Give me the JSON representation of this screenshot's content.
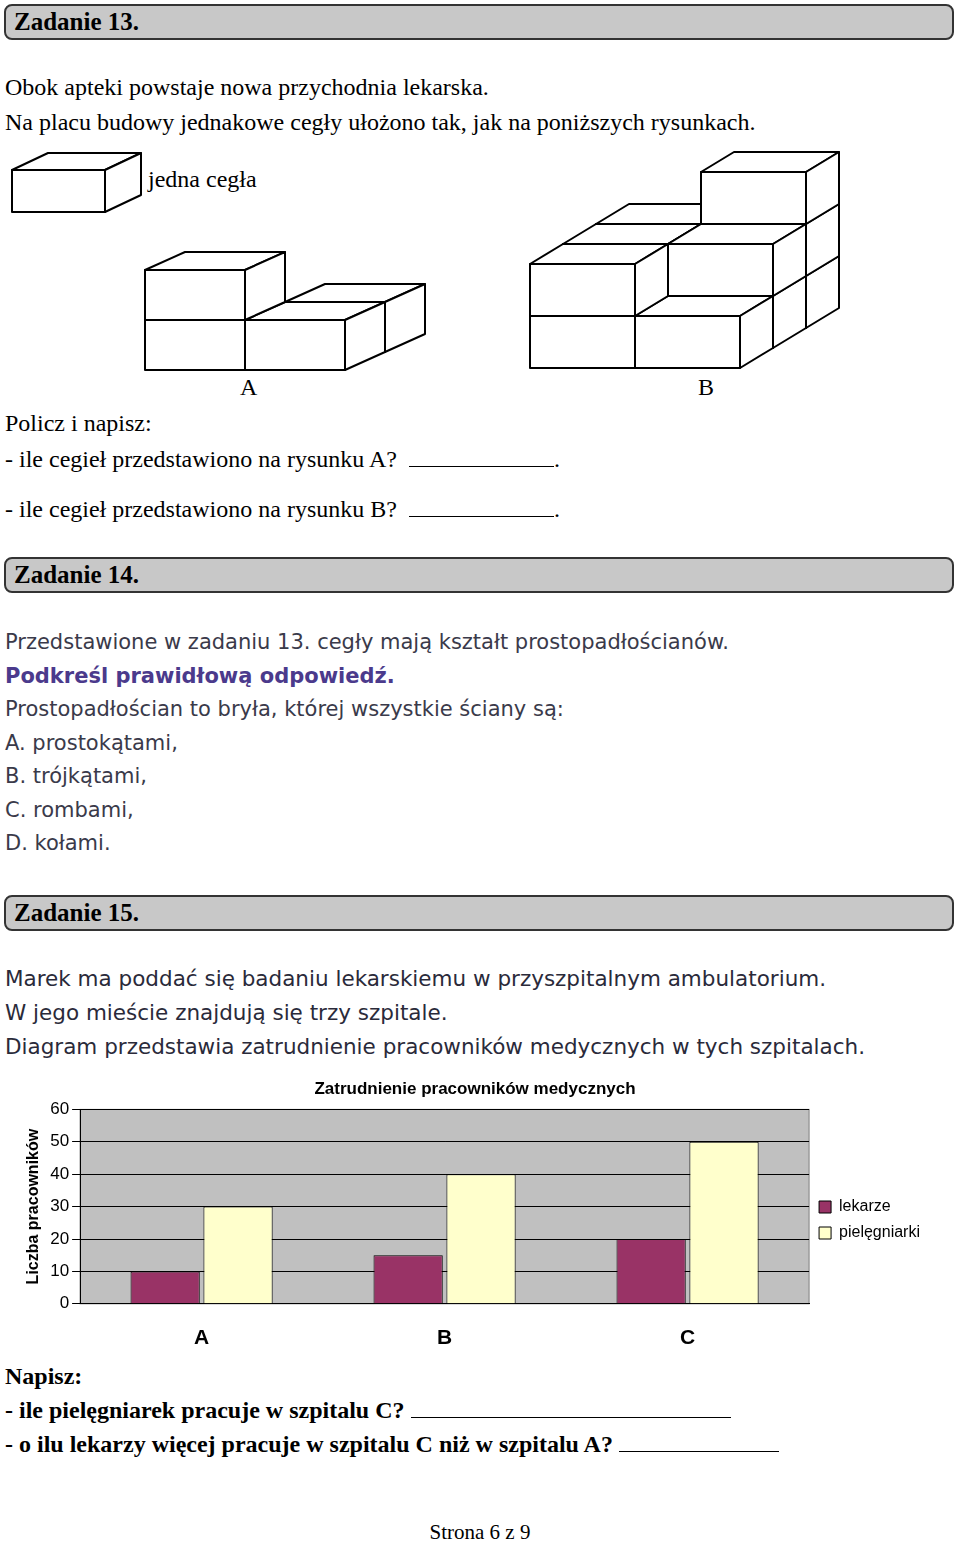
{
  "tasks": [
    {
      "header": "Zadanie 13.",
      "intro": [
        "Obok apteki powstaje nowa przychodnia lekarska.",
        "Na placu budowy jednakowe cegły ułożono tak, jak na poniższych rysunkach."
      ],
      "figure_labels": {
        "brick": "jedna cegła",
        "a": "A",
        "b": "B"
      },
      "instruction": "Policz i napisz:",
      "questions": [
        "- ile cegieł przedstawiono na rysunku A?",
        "- ile cegieł przedstawiono na rysunku B?"
      ],
      "answer_end": "."
    },
    {
      "header": "Zadanie 14.",
      "intro": [
        "Przedstawione w zadaniu 13. cegły mają kształt prostopadłościanów."
      ],
      "instruction": "Podkreśl prawidłową odpowiedź.",
      "stem": "Prostopadłościan to bryła, której wszystkie ściany są:",
      "options": [
        "A. prostokątami,",
        "B. trójkątami,",
        "C. rombami,",
        "D. kołami."
      ]
    },
    {
      "header": "Zadanie 15.",
      "intro": [
        "Marek ma poddać się badaniu lekarskiemu w przyszpitalnym ambulatorium.",
        "W jego mieście znajdują się trzy szpitale.",
        "Diagram przedstawia zatrudnienie pracowników medycznych w tych szpitalach."
      ],
      "instruction": "Napisz:",
      "questions": [
        "- ile pielęgniarek pracuje w szpitalu C?",
        "- o ilu lekarzy więcej pracuje w szpitalu C niż w szpitalu A?"
      ]
    }
  ],
  "chart_data": {
    "type": "bar",
    "title": "Zatrudnienie pracowników medycznych",
    "y_label": "Liczba pracowników",
    "categories": [
      "A",
      "B",
      "C"
    ],
    "series": [
      {
        "name": "lekarze",
        "color": "#993366",
        "values": [
          10,
          15,
          20
        ]
      },
      {
        "name": "pielęgniarki",
        "color": "#ffffcc",
        "values": [
          30,
          40,
          50
        ]
      }
    ],
    "ylim": [
      0,
      60
    ],
    "yticks": [
      0,
      10,
      20,
      30,
      40,
      50,
      60
    ],
    "grid": true,
    "legend": "right"
  },
  "footer": "Strona 6 z 9"
}
